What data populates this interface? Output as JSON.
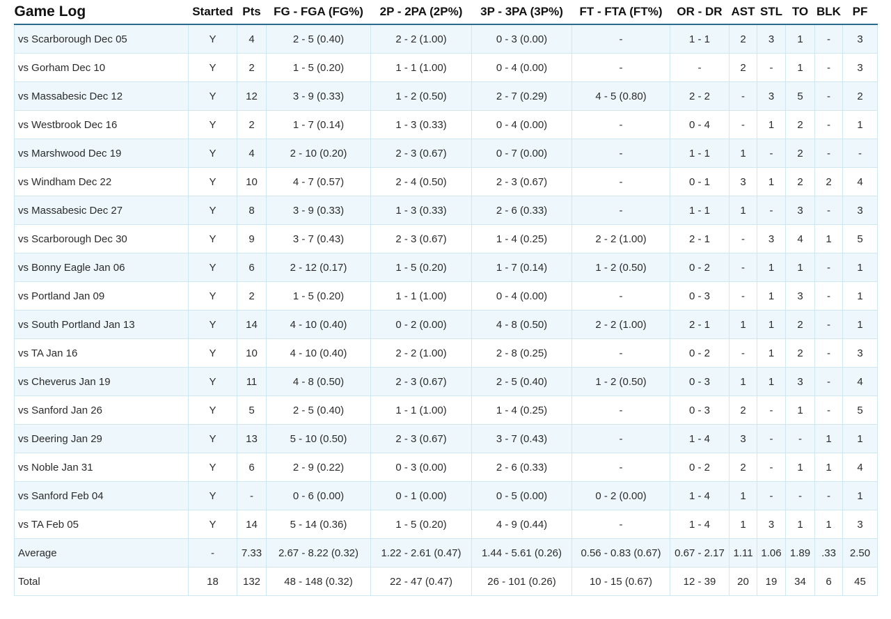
{
  "headers": [
    "Game Log",
    "Started",
    "Pts",
    "FG - FGA (FG%)",
    "2P - 2PA (2P%)",
    "3P - 3PA (3P%)",
    "FT - FTA (FT%)",
    "OR - DR",
    "AST",
    "STL",
    "TO",
    "BLK",
    "PF"
  ],
  "rows": [
    [
      "vs Scarborough Dec 05",
      "Y",
      "4",
      "2 - 5 (0.40)",
      "2 - 2 (1.00)",
      "0 - 3 (0.00)",
      "-",
      "1 - 1",
      "2",
      "3",
      "1",
      "-",
      "3"
    ],
    [
      "vs Gorham Dec 10",
      "Y",
      "2",
      "1 - 5 (0.20)",
      "1 - 1 (1.00)",
      "0 - 4 (0.00)",
      "-",
      "-",
      "2",
      "-",
      "1",
      "-",
      "3"
    ],
    [
      "vs Massabesic Dec 12",
      "Y",
      "12",
      "3 - 9 (0.33)",
      "1 - 2 (0.50)",
      "2 - 7 (0.29)",
      "4 - 5 (0.80)",
      "2 - 2",
      "-",
      "3",
      "5",
      "-",
      "2"
    ],
    [
      "vs Westbrook Dec 16",
      "Y",
      "2",
      "1 - 7 (0.14)",
      "1 - 3 (0.33)",
      "0 - 4 (0.00)",
      "-",
      "0 - 4",
      "-",
      "1",
      "2",
      "-",
      "1"
    ],
    [
      "vs Marshwood Dec 19",
      "Y",
      "4",
      "2 - 10 (0.20)",
      "2 - 3 (0.67)",
      "0 - 7 (0.00)",
      "-",
      "1 - 1",
      "1",
      "-",
      "2",
      "-",
      "-"
    ],
    [
      "vs Windham Dec 22",
      "Y",
      "10",
      "4 - 7 (0.57)",
      "2 - 4 (0.50)",
      "2 - 3 (0.67)",
      "-",
      "0 - 1",
      "3",
      "1",
      "2",
      "2",
      "4"
    ],
    [
      "vs Massabesic Dec 27",
      "Y",
      "8",
      "3 - 9 (0.33)",
      "1 - 3 (0.33)",
      "2 - 6 (0.33)",
      "-",
      "1 - 1",
      "1",
      "-",
      "3",
      "-",
      "3"
    ],
    [
      "vs Scarborough Dec 30",
      "Y",
      "9",
      "3 - 7 (0.43)",
      "2 - 3 (0.67)",
      "1 - 4 (0.25)",
      "2 - 2 (1.00)",
      "2 - 1",
      "-",
      "3",
      "4",
      "1",
      "5"
    ],
    [
      "vs Bonny Eagle Jan 06",
      "Y",
      "6",
      "2 - 12 (0.17)",
      "1 - 5 (0.20)",
      "1 - 7 (0.14)",
      "1 - 2 (0.50)",
      "0 - 2",
      "-",
      "1",
      "1",
      "-",
      "1"
    ],
    [
      "vs Portland Jan 09",
      "Y",
      "2",
      "1 - 5 (0.20)",
      "1 - 1 (1.00)",
      "0 - 4 (0.00)",
      "-",
      "0 - 3",
      "-",
      "1",
      "3",
      "-",
      "1"
    ],
    [
      "vs South Portland Jan 13",
      "Y",
      "14",
      "4 - 10 (0.40)",
      "0 - 2 (0.00)",
      "4 - 8 (0.50)",
      "2 - 2 (1.00)",
      "2 - 1",
      "1",
      "1",
      "2",
      "-",
      "1"
    ],
    [
      "vs TA Jan 16",
      "Y",
      "10",
      "4 - 10 (0.40)",
      "2 - 2 (1.00)",
      "2 - 8 (0.25)",
      "-",
      "0 - 2",
      "-",
      "1",
      "2",
      "-",
      "3"
    ],
    [
      "vs Cheverus Jan 19",
      "Y",
      "11",
      "4 - 8 (0.50)",
      "2 - 3 (0.67)",
      "2 - 5 (0.40)",
      "1 - 2 (0.50)",
      "0 - 3",
      "1",
      "1",
      "3",
      "-",
      "4"
    ],
    [
      "vs Sanford Jan 26",
      "Y",
      "5",
      "2 - 5 (0.40)",
      "1 - 1 (1.00)",
      "1 - 4 (0.25)",
      "-",
      "0 - 3",
      "2",
      "-",
      "1",
      "-",
      "5"
    ],
    [
      "vs Deering Jan 29",
      "Y",
      "13",
      "5 - 10 (0.50)",
      "2 - 3 (0.67)",
      "3 - 7 (0.43)",
      "-",
      "1 - 4",
      "3",
      "-",
      "-",
      "1",
      "1"
    ],
    [
      "vs Noble Jan 31",
      "Y",
      "6",
      "2 - 9 (0.22)",
      "0 - 3 (0.00)",
      "2 - 6 (0.33)",
      "-",
      "0 - 2",
      "2",
      "-",
      "1",
      "1",
      "4"
    ],
    [
      "vs Sanford Feb 04",
      "Y",
      "-",
      "0 - 6 (0.00)",
      "0 - 1 (0.00)",
      "0 - 5 (0.00)",
      "0 - 2 (0.00)",
      "1 - 4",
      "1",
      "-",
      "-",
      "-",
      "1"
    ],
    [
      "vs TA Feb 05",
      "Y",
      "14",
      "5 - 14 (0.36)",
      "1 - 5 (0.20)",
      "4 - 9 (0.44)",
      "-",
      "1 - 4",
      "1",
      "3",
      "1",
      "1",
      "3"
    ],
    [
      "Average",
      "-",
      "7.33",
      "2.67 - 8.22 (0.32)",
      "1.22 - 2.61 (0.47)",
      "1.44 - 5.61 (0.26)",
      "0.56 - 0.83 (0.67)",
      "0.67 - 2.17",
      "1.11",
      "1.06",
      "1.89",
      ".33",
      "2.50"
    ],
    [
      "Total",
      "18",
      "132",
      "48 - 148 (0.32)",
      "22 - 47 (0.47)",
      "26 - 101 (0.26)",
      "10 - 15 (0.67)",
      "12 - 39",
      "20",
      "19",
      "34",
      "6",
      "45"
    ]
  ],
  "colors": {
    "header_rule": "#2a6a8c",
    "row_stripe": "#eef7fb",
    "cell_border": "#cfe7f2"
  }
}
